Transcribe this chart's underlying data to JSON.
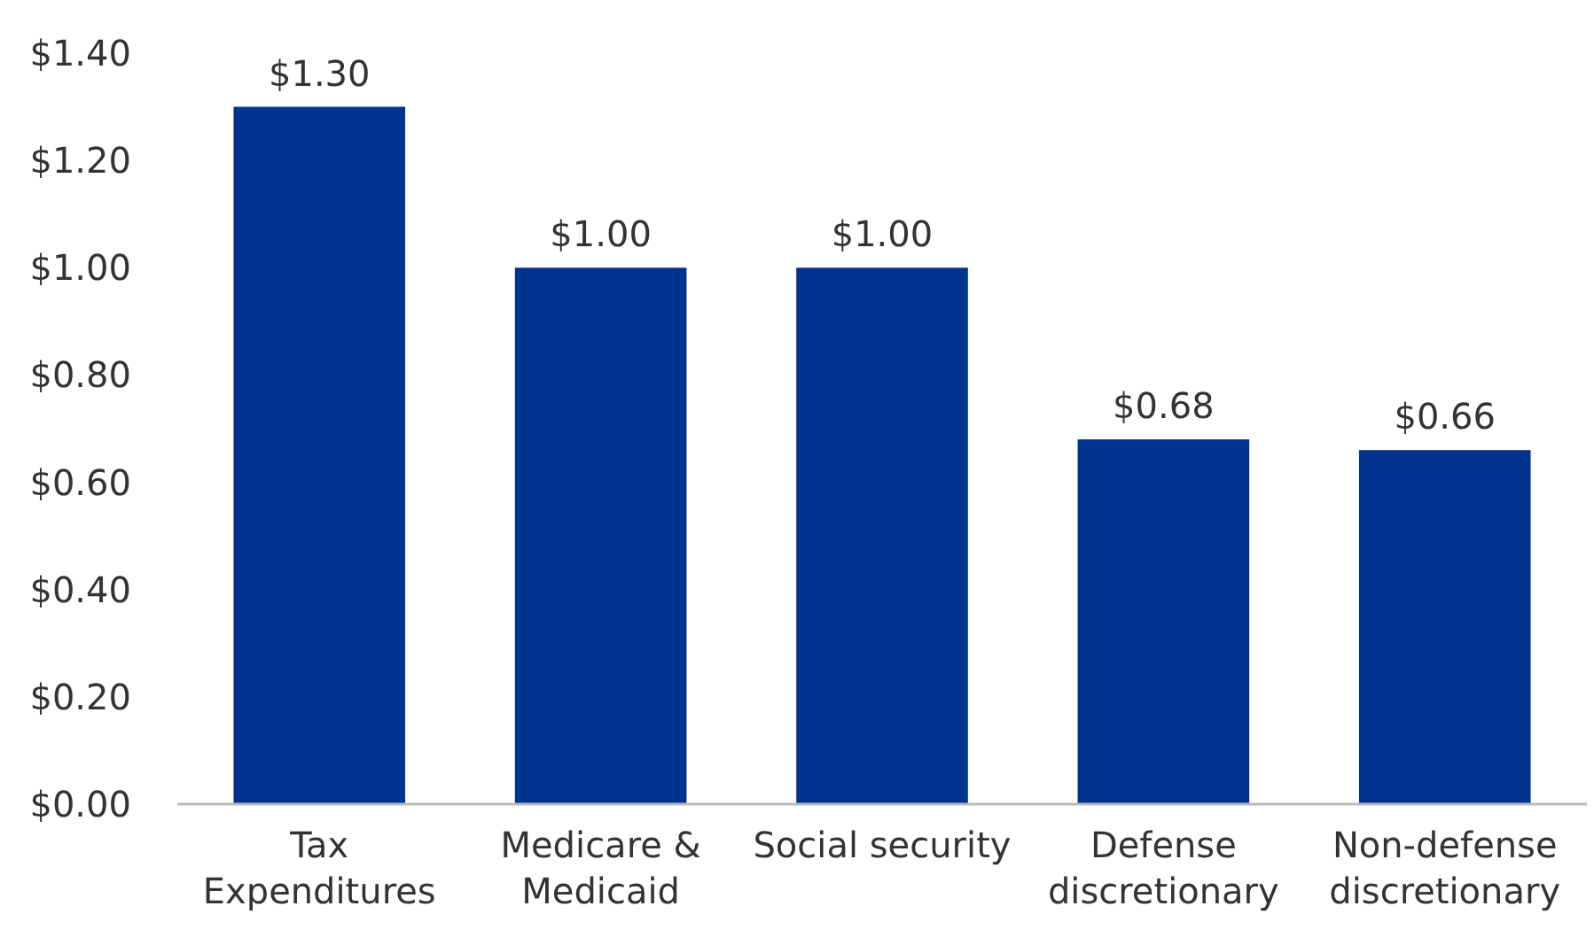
{
  "chart_data": {
    "type": "bar",
    "categories": [
      "Tax Expenditures",
      "Medicare & Medicaid",
      "Social security",
      "Defense discretionary",
      "Non-defense discretionary"
    ],
    "values": [
      1.3,
      1.0,
      1.0,
      0.68,
      0.66
    ],
    "color": "#00338d",
    "value_labels": [
      "$1.30",
      "$1.00",
      "$1.00",
      "$0.68",
      "$0.66"
    ],
    "ylim": [
      0,
      1.4
    ],
    "yticks": [
      {
        "value": 0,
        "label": "$0.00"
      },
      {
        "value": 0.2,
        "label": "$0.20"
      },
      {
        "value": 0.4,
        "label": "$0.40"
      },
      {
        "value": 0.6,
        "label": "$0.60"
      },
      {
        "value": 0.8,
        "label": "$0.80"
      },
      {
        "value": 1.0,
        "label": "$1.00"
      },
      {
        "value": 1.2,
        "label": "$1.20"
      },
      {
        "value": 1.4,
        "label": "$1.40"
      }
    ],
    "grid": false
  }
}
